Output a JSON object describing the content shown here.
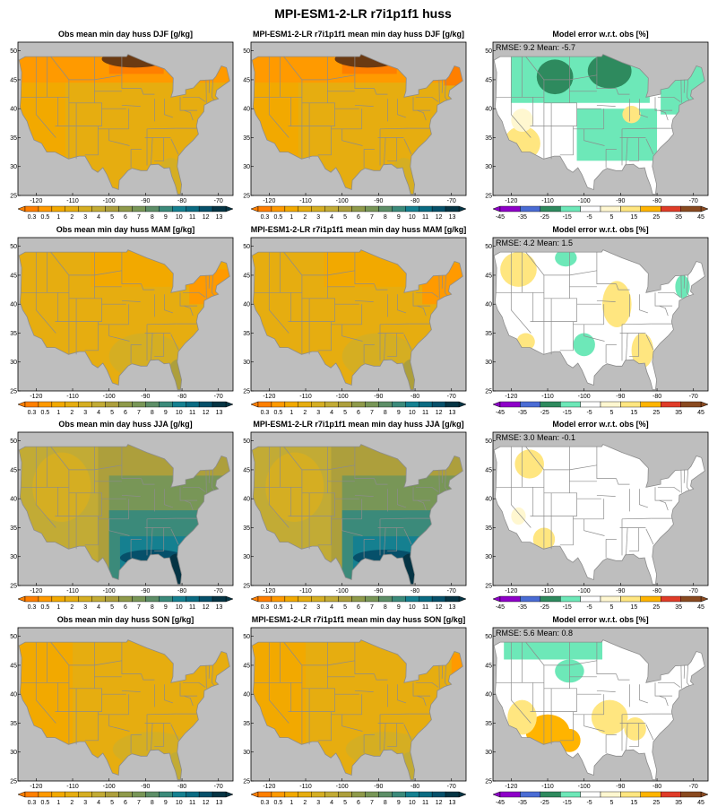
{
  "title": "MPI-ESM1-2-LR r7i1p1f1 huss",
  "colors": {
    "background": "#bebebe",
    "state_border": "#8c8c8c",
    "abs_scale": [
      "#ff7f00",
      "#ff9a00",
      "#f2a900",
      "#e6ad10",
      "#d5ae22",
      "#c2ab35",
      "#ad9f3c",
      "#8f9a4a",
      "#789657",
      "#5d8e67",
      "#3b8a7a",
      "#158090",
      "#0a6b82",
      "#06506a",
      "#053444"
    ],
    "diff_scale": [
      "#8e00c8",
      "#4a6cd4",
      "#2e8a5e",
      "#6de8b8",
      "#ffffff",
      "#fff7d0",
      "#ffe680",
      "#ffb400",
      "#e03c28",
      "#8a4a20"
    ]
  },
  "chart_data": [
    {
      "type": "map",
      "row": 0,
      "col": 0,
      "title": "Obs mean min day  huss DJF [g/kg]",
      "season": "DJF",
      "kind": "obs",
      "colorbar_labels": [
        "0.3",
        "0.5",
        "1",
        "2",
        "3",
        "4",
        "5",
        "6",
        "7",
        "8",
        "9",
        "10",
        "11",
        "12",
        "13"
      ],
      "lon_ticks": [
        "-120",
        "-110",
        "-100",
        "-90",
        "-80",
        "-70"
      ],
      "lat_ticks": [
        "25",
        "30",
        "35",
        "40",
        "45",
        "50"
      ]
    },
    {
      "type": "map",
      "row": 0,
      "col": 1,
      "title": "MPI-ESM1-2-LR r7i1p1f1 mean min day huss DJF [g/kg]",
      "season": "DJF",
      "kind": "model",
      "colorbar_labels": [
        "0.3",
        "0.5",
        "1",
        "2",
        "3",
        "4",
        "5",
        "6",
        "7",
        "8",
        "9",
        "10",
        "11",
        "12",
        "13"
      ],
      "lon_ticks": [
        "-120",
        "-110",
        "-100",
        "-90",
        "-80",
        "-70"
      ],
      "lat_ticks": [
        "25",
        "30",
        "35",
        "40",
        "45",
        "50"
      ]
    },
    {
      "type": "map",
      "row": 0,
      "col": 2,
      "title": "Model error w.r.t. obs [%]",
      "season": "DJF",
      "kind": "diff",
      "rmse": "RMSE: 9.2",
      "mean": "Mean: -5.7",
      "colorbar_labels": [
        "-45",
        "-35",
        "-25",
        "-15",
        "-5",
        "5",
        "15",
        "25",
        "35",
        "45"
      ],
      "lon_ticks": [
        "-120",
        "-110",
        "-100",
        "-90",
        "-80",
        "-70"
      ],
      "lat_ticks": [
        "25",
        "30",
        "35",
        "40",
        "45",
        "50"
      ]
    },
    {
      "type": "map",
      "row": 1,
      "col": 0,
      "title": "Obs mean min day  huss MAM [g/kg]",
      "season": "MAM",
      "kind": "obs",
      "colorbar_labels": [
        "0.3",
        "0.5",
        "1",
        "2",
        "3",
        "4",
        "5",
        "6",
        "7",
        "8",
        "9",
        "10",
        "11",
        "12",
        "13"
      ],
      "lon_ticks": [
        "-120",
        "-110",
        "-100",
        "-90",
        "-80",
        "-70"
      ],
      "lat_ticks": [
        "25",
        "30",
        "35",
        "40",
        "45",
        "50"
      ]
    },
    {
      "type": "map",
      "row": 1,
      "col": 1,
      "title": "MPI-ESM1-2-LR r7i1p1f1 mean min day huss MAM [g/kg]",
      "season": "MAM",
      "kind": "model",
      "colorbar_labels": [
        "0.3",
        "0.5",
        "1",
        "2",
        "3",
        "4",
        "5",
        "6",
        "7",
        "8",
        "9",
        "10",
        "11",
        "12",
        "13"
      ],
      "lon_ticks": [
        "-120",
        "-110",
        "-100",
        "-90",
        "-80",
        "-70"
      ],
      "lat_ticks": [
        "25",
        "30",
        "35",
        "40",
        "45",
        "50"
      ]
    },
    {
      "type": "map",
      "row": 1,
      "col": 2,
      "title": "Model error w.r.t. obs [%]",
      "season": "MAM",
      "kind": "diff",
      "rmse": "RMSE: 4.2",
      "mean": "Mean: 1.5",
      "colorbar_labels": [
        "-45",
        "-35",
        "-25",
        "-15",
        "-5",
        "5",
        "15",
        "25",
        "35",
        "45"
      ],
      "lon_ticks": [
        "-120",
        "-110",
        "-100",
        "-90",
        "-80",
        "-70"
      ],
      "lat_ticks": [
        "25",
        "30",
        "35",
        "40",
        "45",
        "50"
      ]
    },
    {
      "type": "map",
      "row": 2,
      "col": 0,
      "title": "Obs mean min day  huss JJA [g/kg]",
      "season": "JJA",
      "kind": "obs",
      "colorbar_labels": [
        "0.3",
        "0.5",
        "1",
        "2",
        "3",
        "4",
        "5",
        "6",
        "7",
        "8",
        "9",
        "10",
        "11",
        "12",
        "13"
      ],
      "lon_ticks": [
        "-120",
        "-110",
        "-100",
        "-90",
        "-80",
        "-70"
      ],
      "lat_ticks": [
        "25",
        "30",
        "35",
        "40",
        "45",
        "50"
      ]
    },
    {
      "type": "map",
      "row": 2,
      "col": 1,
      "title": "MPI-ESM1-2-LR r7i1p1f1 mean min day huss JJA [g/kg]",
      "season": "JJA",
      "kind": "model",
      "colorbar_labels": [
        "0.3",
        "0.5",
        "1",
        "2",
        "3",
        "4",
        "5",
        "6",
        "7",
        "8",
        "9",
        "10",
        "11",
        "12",
        "13"
      ],
      "lon_ticks": [
        "-120",
        "-110",
        "-100",
        "-90",
        "-80",
        "-70"
      ],
      "lat_ticks": [
        "25",
        "30",
        "35",
        "40",
        "45",
        "50"
      ]
    },
    {
      "type": "map",
      "row": 2,
      "col": 2,
      "title": "Model error w.r.t. obs [%]",
      "season": "JJA",
      "kind": "diff",
      "rmse": "RMSE: 3.0",
      "mean": "Mean: -0.1",
      "colorbar_labels": [
        "-45",
        "-35",
        "-25",
        "-15",
        "-5",
        "5",
        "15",
        "25",
        "35",
        "45"
      ],
      "lon_ticks": [
        "-120",
        "-110",
        "-100",
        "-90",
        "-80",
        "-70"
      ],
      "lat_ticks": [
        "25",
        "30",
        "35",
        "40",
        "45",
        "50"
      ]
    },
    {
      "type": "map",
      "row": 3,
      "col": 0,
      "title": "Obs mean min day  huss SON [g/kg]",
      "season": "SON",
      "kind": "obs",
      "colorbar_labels": [
        "0.3",
        "0.5",
        "1",
        "2",
        "3",
        "4",
        "5",
        "6",
        "7",
        "8",
        "9",
        "10",
        "11",
        "12",
        "13"
      ],
      "lon_ticks": [
        "-120",
        "-110",
        "-100",
        "-90",
        "-80",
        "-70"
      ],
      "lat_ticks": [
        "25",
        "30",
        "35",
        "40",
        "45",
        "50"
      ]
    },
    {
      "type": "map",
      "row": 3,
      "col": 1,
      "title": "MPI-ESM1-2-LR r7i1p1f1 mean min day huss SON [g/kg]",
      "season": "SON",
      "kind": "model",
      "colorbar_labels": [
        "0.3",
        "0.5",
        "1",
        "2",
        "3",
        "4",
        "5",
        "6",
        "7",
        "8",
        "9",
        "10",
        "11",
        "12",
        "13"
      ],
      "lon_ticks": [
        "-120",
        "-110",
        "-100",
        "-90",
        "-80",
        "-70"
      ],
      "lat_ticks": [
        "25",
        "30",
        "35",
        "40",
        "45",
        "50"
      ]
    },
    {
      "type": "map",
      "row": 3,
      "col": 2,
      "title": "Model error w.r.t. obs [%]",
      "season": "SON",
      "kind": "diff",
      "rmse": "RMSE: 5.6",
      "mean": "Mean: 0.8",
      "colorbar_labels": [
        "-45",
        "-35",
        "-25",
        "-15",
        "-5",
        "5",
        "15",
        "25",
        "35",
        "45"
      ],
      "lon_ticks": [
        "-120",
        "-110",
        "-100",
        "-90",
        "-80",
        "-70"
      ],
      "lat_ticks": [
        "25",
        "30",
        "35",
        "40",
        "45",
        "50"
      ]
    }
  ]
}
